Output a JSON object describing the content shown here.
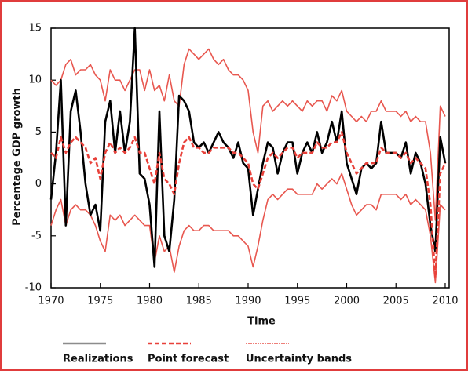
{
  "chart_data": {
    "type": "line",
    "x_label": "Time",
    "y_label": "Percentage GDP growth",
    "x": [
      1970,
      1970.5,
      1971,
      1971.5,
      1972,
      1972.5,
      1973,
      1973.5,
      1974,
      1974.5,
      1975,
      1975.5,
      1976,
      1976.5,
      1977,
      1977.5,
      1978,
      1978.5,
      1979,
      1979.5,
      1980,
      1980.5,
      1981,
      1981.5,
      1982,
      1982.5,
      1983,
      1983.5,
      1984,
      1984.5,
      1985,
      1985.5,
      1986,
      1986.5,
      1987,
      1987.5,
      1988,
      1988.5,
      1989,
      1989.5,
      1990,
      1990.5,
      1991,
      1991.5,
      1992,
      1992.5,
      1993,
      1993.5,
      1994,
      1994.5,
      1995,
      1995.5,
      1996,
      1996.5,
      1997,
      1997.5,
      1998,
      1998.5,
      1999,
      1999.5,
      2000,
      2000.5,
      2001,
      2001.5,
      2002,
      2002.5,
      2003,
      2003.5,
      2004,
      2004.5,
      2005,
      2005.5,
      2006,
      2006.5,
      2007,
      2007.5,
      2008,
      2008.5,
      2009,
      2009.5,
      2010
    ],
    "series": [
      {
        "name": "Realizations",
        "color": "#000000",
        "legend_color": "#8c8c8c",
        "style": "solid",
        "values": [
          -1.5,
          3,
          10,
          -4,
          7,
          9,
          5,
          0,
          -3,
          -2,
          -4.5,
          6,
          8,
          3,
          7,
          3,
          6,
          15,
          1,
          0.5,
          -2,
          -8,
          7,
          -5,
          -6.5,
          -1.5,
          8.5,
          8,
          7,
          4,
          3.5,
          4,
          3,
          4,
          5,
          4,
          3.5,
          2.5,
          4,
          2,
          1.5,
          -3,
          -0.5,
          2,
          4,
          3.5,
          1,
          3,
          4,
          4,
          1,
          3,
          4,
          3,
          5,
          3,
          4,
          6,
          4,
          7,
          2,
          0.5,
          -1,
          1.5,
          2,
          1.5,
          2,
          6,
          3,
          3,
          3,
          2.5,
          4,
          1,
          3,
          2,
          0,
          -4,
          -6.5,
          4.5,
          2
        ]
      },
      {
        "name": "Point forecast",
        "color": "#e8413a",
        "style": "dashed",
        "values": [
          3,
          2.5,
          4.5,
          3,
          4,
          4.5,
          4,
          3.5,
          2,
          2.5,
          0.5,
          3,
          4,
          3,
          3.5,
          3,
          3.5,
          4.5,
          3,
          3,
          1.5,
          0,
          3,
          0.5,
          0,
          -1,
          2,
          4,
          4.5,
          3.5,
          3.5,
          3,
          3,
          3.5,
          3.5,
          3.5,
          3.5,
          3,
          3,
          2.5,
          2,
          0,
          -0.5,
          1,
          2.5,
          3,
          2.5,
          3,
          3.5,
          3.5,
          2.5,
          3,
          3,
          3,
          4,
          3.5,
          3.5,
          4,
          4,
          5,
          3,
          2,
          1,
          1.5,
          2,
          2,
          2,
          3.5,
          3,
          3,
          3,
          2.5,
          3,
          2,
          2.5,
          2,
          1.5,
          -2,
          -9,
          1,
          2
        ]
      },
      {
        "name": "Uncertainty bands",
        "color": "#e8574f",
        "style": "band",
        "upper": [
          10,
          9.5,
          10,
          11.5,
          12,
          10.5,
          11,
          11,
          11.5,
          10.5,
          10,
          8,
          11,
          10,
          10,
          9,
          10,
          11,
          11,
          9,
          11,
          9,
          9.5,
          8,
          10.5,
          8,
          7.5,
          11.5,
          13,
          12.5,
          12,
          12.5,
          13,
          12,
          11.5,
          12,
          11,
          10.5,
          10.5,
          10,
          9,
          5,
          3,
          7.5,
          8,
          7,
          7.5,
          8,
          7.5,
          8,
          7.5,
          7,
          8,
          7.5,
          8,
          8,
          7,
          8.5,
          8,
          9,
          7,
          6.5,
          6,
          6.5,
          6,
          7,
          7,
          8,
          7,
          7,
          7,
          6.5,
          7,
          6,
          6.5,
          6,
          6,
          3,
          -3.5,
          7.5,
          6.5
        ],
        "lower": [
          -4,
          -2.5,
          -1.5,
          -4,
          -2.5,
          -2,
          -2.5,
          -2.5,
          -3,
          -4,
          -5.5,
          -6.5,
          -3,
          -3.5,
          -3,
          -4,
          -3.5,
          -3,
          -3.5,
          -4,
          -4,
          -7.5,
          -5,
          -6.5,
          -6,
          -8.5,
          -6,
          -4.5,
          -4,
          -4.5,
          -4.5,
          -4,
          -4,
          -4.5,
          -4.5,
          -4.5,
          -4.5,
          -5,
          -5,
          -5.5,
          -6,
          -8,
          -6,
          -3.5,
          -1.5,
          -1,
          -1.5,
          -1,
          -0.5,
          -0.5,
          -1,
          -1,
          -1,
          -1,
          0,
          -0.5,
          0,
          0.5,
          0,
          1,
          -0.5,
          -2,
          -3,
          -2.5,
          -2,
          -2,
          -2.5,
          -1,
          -1,
          -1,
          -1,
          -1.5,
          -1,
          -2,
          -1.5,
          -2,
          -2.5,
          -5,
          -9.5,
          -2,
          -2.5
        ]
      }
    ],
    "xlim": [
      1970,
      2010.4
    ],
    "xticks": [
      1970,
      1975,
      1980,
      1985,
      1990,
      1995,
      2000,
      2005,
      2010
    ],
    "ylim": [
      -10,
      15
    ],
    "yticks": [
      -10,
      -5,
      0,
      5,
      10,
      15
    ],
    "frame_color": "#e03c3c"
  }
}
